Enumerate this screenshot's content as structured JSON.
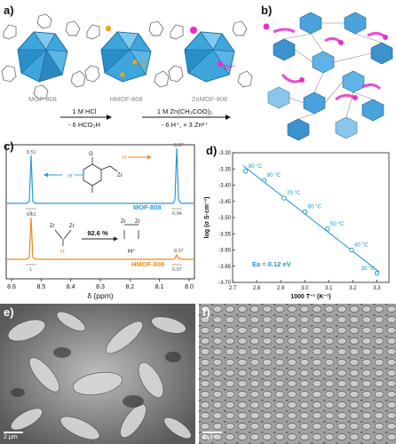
{
  "panels": {
    "a": {
      "label": "a)",
      "structures": [
        "MOF-808",
        "HMOF-808",
        "ZnMOF-808"
      ],
      "ion_labels": [
        "H⁺",
        "Zn²⁺"
      ],
      "step1": {
        "top": "1 M HCl",
        "bottom": "- 6 HCO₂H"
      },
      "step2": {
        "top": "1 M Zn(CH₃COO)₂",
        "bottom": "- 6 H⁺, + 3 Zn²⁺"
      }
    },
    "b": {
      "label": "b)"
    },
    "c": {
      "label": "c)",
      "xlabel": "δ (ppm)",
      "xticks": [
        "8.6",
        "8.5",
        "8.4",
        "8.3",
        "8.2",
        "8.1",
        "8.0"
      ],
      "mof_label": "MOF-808",
      "hmof_label": "HMOF-808",
      "peak_top_left": "8.51",
      "peak_top_right": "8.07",
      "int_top_left": "1",
      "int_top_right": "0.94",
      "peak_bot_left": "8.51",
      "peak_bot_right": "8.07",
      "int_bot_left": "1",
      "int_bot_right": "0.07",
      "conversion": "92.6 %",
      "h_plus": "H⁺",
      "atom_H": "H",
      "atom_O": "O",
      "atom_Zr": "Zr"
    },
    "d": {
      "label": "d)"
    },
    "e": {
      "label": "e)",
      "scale": "2 μm"
    },
    "f": {
      "label": "f)",
      "scale": "2 μm"
    }
  },
  "chart_data": {
    "type": "scatter",
    "title": "",
    "xlabel": "1000 T⁻¹ (K⁻¹)",
    "ylabel": "log (σ S·cm⁻¹)",
    "xlim": [
      2.7,
      3.35
    ],
    "ylim": [
      -3.7,
      -3.3
    ],
    "xticks": [
      2.7,
      2.8,
      2.9,
      3.0,
      3.1,
      3.2,
      3.3
    ],
    "yticks": [
      -3.3,
      -3.35,
      -3.4,
      -3.45,
      -3.5,
      -3.55,
      -3.6,
      -3.65,
      -3.7
    ],
    "x": [
      2.754,
      2.832,
      2.914,
      3.001,
      3.095,
      3.195,
      3.3
    ],
    "y": [
      -3.357,
      -3.385,
      -3.44,
      -3.482,
      -3.535,
      -3.6,
      -3.672
    ],
    "point_labels": [
      "90 °C",
      "80 °C",
      "70 °C",
      "60 °C",
      "50 °C",
      "40 °C",
      "30 °C"
    ],
    "annotation": "Ea = 0.12 eV",
    "colors": {
      "line": "#1a93d0",
      "point": "#1a93d0",
      "annotation": "#1a93d0"
    }
  }
}
